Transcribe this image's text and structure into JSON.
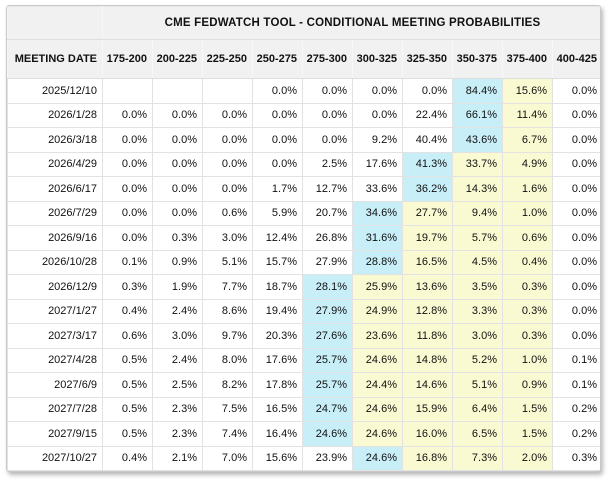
{
  "title": "CME FEDWATCH TOOL - CONDITIONAL MEETING PROBABILITIES",
  "colors": {
    "highlight_blue": "#c8eef8",
    "highlight_yellow": "#fafad2",
    "header_bg": "#f1f1f1",
    "grid_border": "#e2e2e2"
  },
  "table": {
    "meeting_date_header": "MEETING DATE",
    "columns": [
      "175-200",
      "200-225",
      "225-250",
      "250-275",
      "275-300",
      "300-325",
      "325-350",
      "350-375",
      "375-400",
      "400-425"
    ],
    "rows": [
      {
        "date": "2025/12/10",
        "values": [
          "",
          "",
          "",
          "0.0%",
          "0.0%",
          "0.0%",
          "0.0%",
          "84.4%",
          "15.6%",
          "0.0%"
        ],
        "highlight": {
          "blue": 7,
          "yellow": [
            8
          ]
        }
      },
      {
        "date": "2026/1/28",
        "values": [
          "0.0%",
          "0.0%",
          "0.0%",
          "0.0%",
          "0.0%",
          "0.0%",
          "22.4%",
          "66.1%",
          "11.4%",
          "0.0%"
        ],
        "highlight": {
          "blue": 7,
          "yellow": [
            8
          ]
        }
      },
      {
        "date": "2026/3/18",
        "values": [
          "0.0%",
          "0.0%",
          "0.0%",
          "0.0%",
          "0.0%",
          "9.2%",
          "40.4%",
          "43.6%",
          "6.7%",
          "0.0%"
        ],
        "highlight": {
          "blue": 7,
          "yellow": [
            8
          ]
        }
      },
      {
        "date": "2026/4/29",
        "values": [
          "0.0%",
          "0.0%",
          "0.0%",
          "0.0%",
          "2.5%",
          "17.6%",
          "41.3%",
          "33.7%",
          "4.9%",
          "0.0%"
        ],
        "highlight": {
          "blue": 6,
          "yellow": [
            7,
            8
          ]
        }
      },
      {
        "date": "2026/6/17",
        "values": [
          "0.0%",
          "0.0%",
          "0.0%",
          "1.7%",
          "12.7%",
          "33.6%",
          "36.2%",
          "14.3%",
          "1.6%",
          "0.0%"
        ],
        "highlight": {
          "blue": 6,
          "yellow": [
            7,
            8
          ]
        }
      },
      {
        "date": "2026/7/29",
        "values": [
          "0.0%",
          "0.0%",
          "0.6%",
          "5.9%",
          "20.7%",
          "34.6%",
          "27.7%",
          "9.4%",
          "1.0%",
          "0.0%"
        ],
        "highlight": {
          "blue": 5,
          "yellow": [
            6,
            7,
            8
          ]
        }
      },
      {
        "date": "2026/9/16",
        "values": [
          "0.0%",
          "0.3%",
          "3.0%",
          "12.4%",
          "26.8%",
          "31.6%",
          "19.7%",
          "5.7%",
          "0.6%",
          "0.0%"
        ],
        "highlight": {
          "blue": 5,
          "yellow": [
            6,
            7,
            8
          ]
        }
      },
      {
        "date": "2026/10/28",
        "values": [
          "0.1%",
          "0.9%",
          "5.1%",
          "15.7%",
          "27.9%",
          "28.8%",
          "16.5%",
          "4.5%",
          "0.4%",
          "0.0%"
        ],
        "highlight": {
          "blue": 5,
          "yellow": [
            6,
            7,
            8
          ]
        }
      },
      {
        "date": "2026/12/9",
        "values": [
          "0.3%",
          "1.9%",
          "7.7%",
          "18.7%",
          "28.1%",
          "25.9%",
          "13.6%",
          "3.5%",
          "0.3%",
          "0.0%"
        ],
        "highlight": {
          "blue": 4,
          "yellow": [
            5,
            6,
            7,
            8
          ]
        }
      },
      {
        "date": "2027/1/27",
        "values": [
          "0.4%",
          "2.4%",
          "8.6%",
          "19.4%",
          "27.9%",
          "24.9%",
          "12.8%",
          "3.3%",
          "0.3%",
          "0.0%"
        ],
        "highlight": {
          "blue": 4,
          "yellow": [
            5,
            6,
            7,
            8
          ]
        }
      },
      {
        "date": "2027/3/17",
        "values": [
          "0.6%",
          "3.0%",
          "9.7%",
          "20.3%",
          "27.6%",
          "23.6%",
          "11.8%",
          "3.0%",
          "0.3%",
          "0.0%"
        ],
        "highlight": {
          "blue": 4,
          "yellow": [
            5,
            6,
            7,
            8
          ]
        }
      },
      {
        "date": "2027/4/28",
        "values": [
          "0.5%",
          "2.4%",
          "8.0%",
          "17.6%",
          "25.7%",
          "24.6%",
          "14.8%",
          "5.2%",
          "1.0%",
          "0.1%"
        ],
        "highlight": {
          "blue": 4,
          "yellow": [
            5,
            6,
            7,
            8
          ]
        }
      },
      {
        "date": "2027/6/9",
        "values": [
          "0.5%",
          "2.5%",
          "8.2%",
          "17.8%",
          "25.7%",
          "24.4%",
          "14.6%",
          "5.1%",
          "0.9%",
          "0.1%"
        ],
        "highlight": {
          "blue": 4,
          "yellow": [
            5,
            6,
            7,
            8
          ]
        }
      },
      {
        "date": "2027/7/28",
        "values": [
          "0.5%",
          "2.3%",
          "7.5%",
          "16.5%",
          "24.7%",
          "24.6%",
          "15.9%",
          "6.4%",
          "1.5%",
          "0.2%"
        ],
        "highlight": {
          "blue": 4,
          "yellow": [
            5,
            6,
            7,
            8
          ]
        }
      },
      {
        "date": "2027/9/15",
        "values": [
          "0.5%",
          "2.3%",
          "7.4%",
          "16.4%",
          "24.6%",
          "24.6%",
          "16.0%",
          "6.5%",
          "1.5%",
          "0.2%"
        ],
        "highlight": {
          "blue": 4,
          "yellow": [
            5,
            6,
            7,
            8
          ]
        }
      },
      {
        "date": "2027/10/27",
        "values": [
          "0.4%",
          "2.1%",
          "7.0%",
          "15.6%",
          "23.9%",
          "24.6%",
          "16.8%",
          "7.3%",
          "2.0%",
          "0.3%"
        ],
        "highlight": {
          "blue": 5,
          "yellow": [
            6,
            7,
            8
          ]
        }
      }
    ]
  }
}
